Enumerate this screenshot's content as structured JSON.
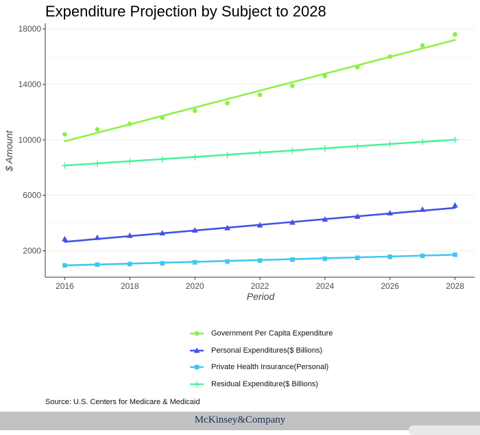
{
  "chart_data": {
    "type": "line",
    "title": "Expenditure Projection by Subject to 2028",
    "xlabel": "Period",
    "ylabel": "$ Amount",
    "x": [
      2016,
      2017,
      2018,
      2019,
      2020,
      2021,
      2022,
      2023,
      2024,
      2025,
      2026,
      2027,
      2028
    ],
    "xticks": [
      2016,
      2018,
      2020,
      2022,
      2024,
      2026,
      2028
    ],
    "yticks": [
      2000,
      6000,
      10000,
      14000,
      18000
    ],
    "xlim": [
      2015.4,
      2028.6
    ],
    "ylim": [
      100,
      18400
    ],
    "grid": true,
    "legend_position": "bottom",
    "series": [
      {
        "name": "Government Per Capita Expenditure",
        "color": "#8ef046",
        "marker": "circle",
        "points": [
          10400,
          10750,
          11150,
          11600,
          12100,
          12650,
          13250,
          13900,
          14600,
          15250,
          16000,
          16800,
          17600
        ],
        "trend": [
          9900,
          17200
        ]
      },
      {
        "name": "Personal Expenditures($ Billions)",
        "color": "#4153e6",
        "marker": "triangle",
        "points": [
          2850,
          2950,
          3100,
          3280,
          3480,
          3650,
          3850,
          4050,
          4270,
          4480,
          4720,
          4980,
          5280
        ],
        "trend": [
          2650,
          5100
        ]
      },
      {
        "name": "Private Health Insurance(Personal)",
        "color": "#3fc7f2",
        "marker": "square",
        "points": [
          950,
          1000,
          1050,
          1100,
          1170,
          1230,
          1300,
          1370,
          1430,
          1500,
          1570,
          1640,
          1720
        ],
        "trend": [
          950,
          1720
        ]
      },
      {
        "name": "Residual Expenditure($ Billions)",
        "color": "#4cf0a0",
        "marker": "plus",
        "points": [
          8150,
          8280,
          8430,
          8580,
          8740,
          8900,
          9060,
          9220,
          9380,
          9530,
          9690,
          9850,
          10010
        ],
        "trend": [
          8150,
          10010
        ]
      }
    ]
  },
  "source_text": "Source: U.S. Centers for Medicare & Medicaid",
  "footer_brand": "McKinsey&Company"
}
